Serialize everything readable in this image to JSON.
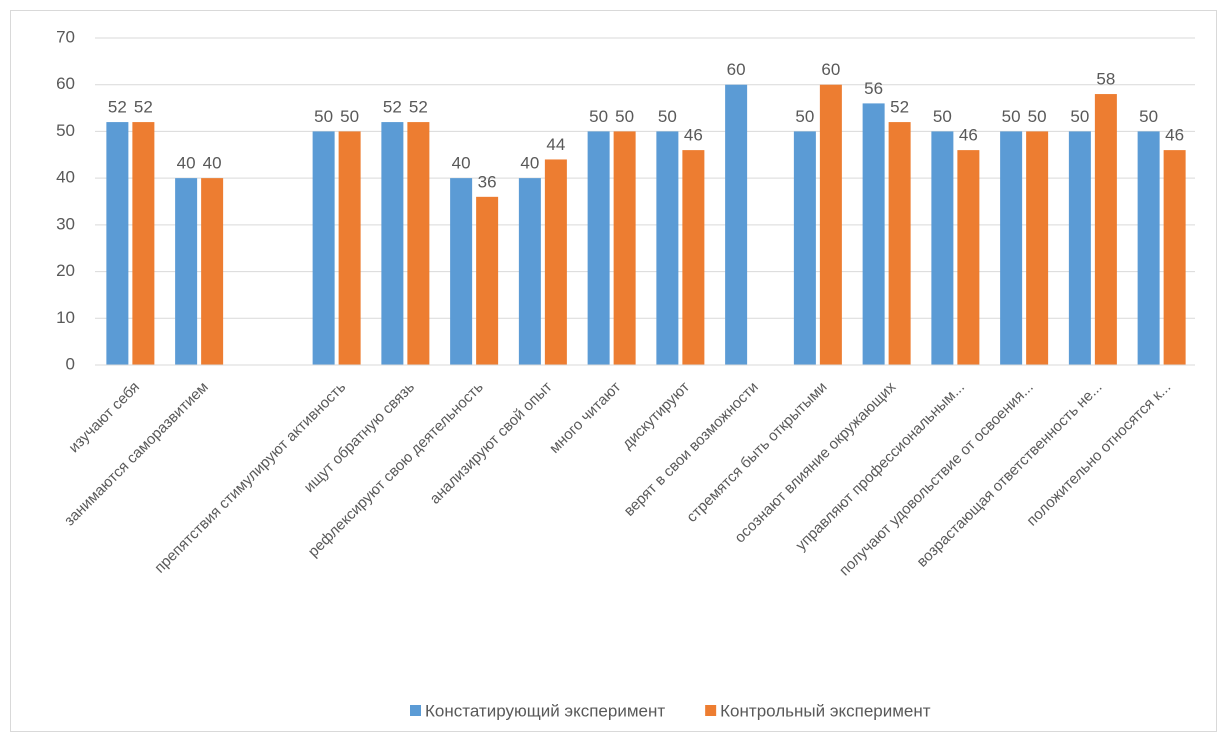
{
  "chart_data": {
    "type": "bar",
    "categories": [
      "изучают себя",
      "занимаются саморазвитием",
      null,
      "препятствия стимулируют активность",
      "ищут обратную связь",
      "рефлексируют свою деятельность",
      "анализируют свой опыт",
      "много читают",
      "дискутируют",
      "верят в свои возможности",
      "стремятся быть открытыми",
      "осознают влияние окружающих",
      "управляют профессиональным...",
      "получают удовольствие от освоения...",
      "возрастающая ответственность не...",
      "положительно относятся к..."
    ],
    "series": [
      {
        "name": "Констатирующий эксперимент",
        "color": "#5b9bd5",
        "values": [
          52,
          40,
          null,
          50,
          52,
          40,
          40,
          50,
          50,
          60,
          50,
          56,
          50,
          50,
          50,
          50
        ]
      },
      {
        "name": "Контрольный эксперимент",
        "color": "#ed7d31",
        "values": [
          52,
          40,
          null,
          50,
          52,
          36,
          44,
          50,
          46,
          null,
          60,
          52,
          46,
          50,
          58,
          46
        ]
      }
    ],
    "ylim": [
      0,
      70
    ],
    "yticks": [
      0,
      10,
      20,
      30,
      40,
      50,
      60,
      70
    ],
    "grid": true,
    "legend": "bottom"
  }
}
